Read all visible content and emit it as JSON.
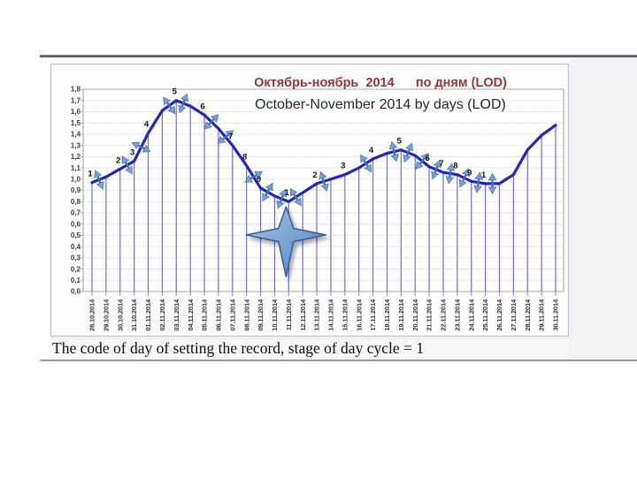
{
  "page": {
    "caption": "The code of day of setting the record, stage of day cycle = 1"
  },
  "chart_data": {
    "type": "line",
    "title_ru": "Октябрь-ноябрь  2014      по дням (LOD)",
    "title_en": "October-November 2014 by days (LOD)",
    "xlabel": "",
    "ylabel": "",
    "ylim": [
      0,
      1.8
    ],
    "ytick_step": 0.1,
    "decimal_style": "comma",
    "grid": "horizontal-dotted",
    "legend": "none",
    "marker_style": "drop-lines-to-axis",
    "y_ticks": [
      "1,8",
      "1,7",
      "1,6",
      "1,5",
      "1,4",
      "1,3",
      "1,2",
      "1,1",
      "1,0",
      "0,9",
      "0,8",
      "0,7",
      "0,6",
      "0,5",
      "0,4",
      "0,3",
      "0,2",
      "0,1",
      "0,0"
    ],
    "x": [
      "28.10.2014",
      "29.10.2014",
      "30.10.2014",
      "31.10.2014",
      "01.11.2014",
      "02.11.2014",
      "03.11.2014",
      "04.11.2014",
      "05.11.2014",
      "06.11.2014",
      "07.11.2014",
      "08.11.2014",
      "09.11.2014",
      "10.11.2014",
      "11.11.2014",
      "12.11.2014",
      "13.11.2014",
      "14.11.2014",
      "15.11.2014",
      "16.11.2014",
      "17.11.2014",
      "18.11.2014",
      "19.11.2014",
      "20.11.2014",
      "21.11.2014",
      "22.11.2014",
      "23.11.2014",
      "24.11.2014",
      "25.11.2014",
      "26.11.2014",
      "27.11.2014",
      "28.11.2014",
      "29.11.2014",
      "30.11.2014"
    ],
    "values": [
      0.97,
      1.02,
      1.09,
      1.16,
      1.41,
      1.61,
      1.7,
      1.65,
      1.57,
      1.45,
      1.3,
      1.12,
      0.92,
      0.85,
      0.8,
      0.88,
      0.96,
      1.0,
      1.04,
      1.1,
      1.18,
      1.23,
      1.26,
      1.21,
      1.11,
      1.06,
      1.04,
      0.98,
      0.96,
      0.96,
      1.04,
      1.26,
      1.39,
      1.48
    ],
    "cycle_day_labels": [
      {
        "index": 0,
        "label": "1"
      },
      {
        "index": 2,
        "label": "2"
      },
      {
        "index": 3,
        "label": "3"
      },
      {
        "index": 4,
        "label": "4"
      },
      {
        "index": 6,
        "label": "5"
      },
      {
        "index": 8,
        "label": "6"
      },
      {
        "index": 10,
        "label": "7"
      },
      {
        "index": 11,
        "label": "8"
      },
      {
        "index": 12,
        "label": "9"
      },
      {
        "index": 14,
        "label": "1"
      },
      {
        "index": 16,
        "label": "2"
      },
      {
        "index": 18,
        "label": "3"
      },
      {
        "index": 20,
        "label": "4"
      },
      {
        "index": 22,
        "label": "5"
      },
      {
        "index": 24,
        "label": "6"
      },
      {
        "index": 25,
        "label": "7"
      },
      {
        "index": 26,
        "label": "8"
      },
      {
        "index": 27,
        "label": "9"
      },
      {
        "index": 28,
        "label": "1"
      }
    ],
    "arrow_segments": [
      0,
      2,
      3,
      5,
      6,
      8,
      9,
      11,
      12,
      13,
      14,
      16,
      19,
      21,
      22,
      23,
      24,
      25,
      26,
      27,
      28
    ],
    "star_annotation": {
      "shape": "4-point-star",
      "at_date": "11.11.2014"
    },
    "colors": {
      "title": "#943634",
      "subtitle": "#262626",
      "line": "#2323cd",
      "drop_line": "#6e6ed2",
      "grid": "#c3c3c3",
      "plot_border": "#9aa0a8",
      "tick_text": "#3c3c3c",
      "cycle_label": "#141414",
      "arrow_fill": "#73a3d4",
      "arrow_stroke": "#3f74aa",
      "star_fill_light": "#a6c8ec",
      "star_fill_dark": "#4b7fba",
      "star_stroke": "#2d5e9b"
    }
  }
}
